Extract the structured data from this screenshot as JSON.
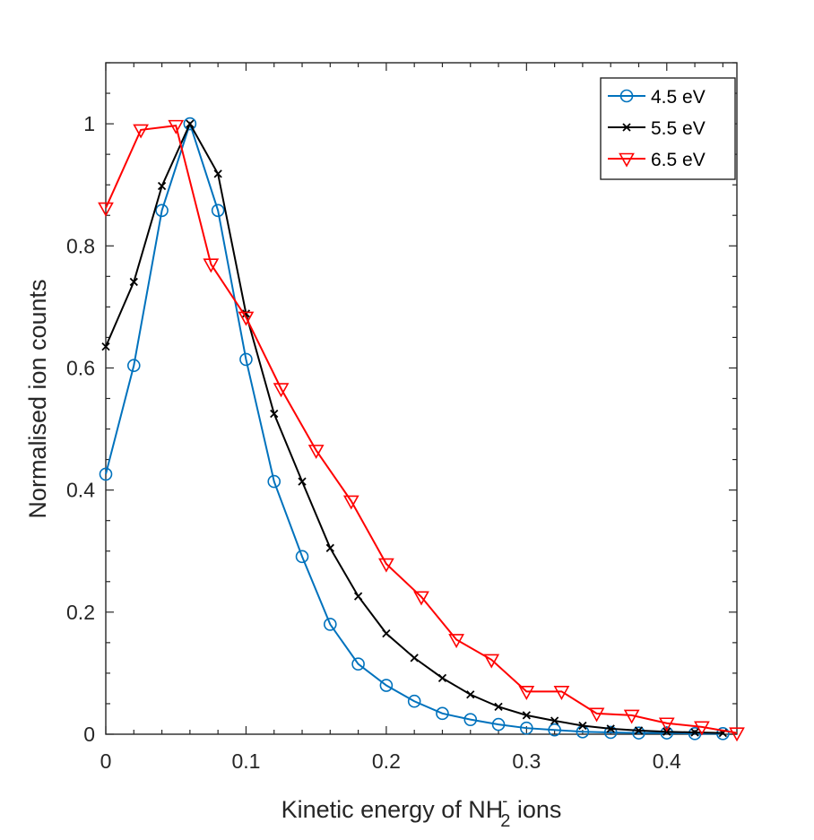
{
  "chart_data": {
    "type": "line",
    "title": "",
    "xlabel": "Kinetic energy of NH",
    "xlabel_subscript": "2",
    "xlabel_superscript": "-",
    "xlabel_suffix": " ions",
    "ylabel": "Normalised ion counts",
    "xlim": [
      0,
      0.45
    ],
    "ylim": [
      0,
      1.1
    ],
    "xticks": [
      0,
      0.1,
      0.2,
      0.3,
      0.4
    ],
    "xtick_labels": [
      "0",
      "0.1",
      "0.2",
      "0.3",
      "0.4"
    ],
    "yticks": [
      0,
      0.2,
      0.4,
      0.6,
      0.8,
      1
    ],
    "ytick_labels": [
      "0",
      "0.2",
      "0.4",
      "0.6",
      "0.8",
      "1"
    ],
    "grid": false,
    "legend_position": "top-right",
    "series": [
      {
        "name": "4.5 eV",
        "color": "#0072bd",
        "marker": "circle",
        "x": [
          0,
          0.02,
          0.04,
          0.06,
          0.08,
          0.1,
          0.12,
          0.14,
          0.16,
          0.18,
          0.2,
          0.22,
          0.24,
          0.26,
          0.28,
          0.3,
          0.32,
          0.34,
          0.36,
          0.38,
          0.4,
          0.42,
          0.44
        ],
        "values": [
          0.426,
          0.604,
          0.858,
          1.0,
          0.858,
          0.614,
          0.414,
          0.291,
          0.18,
          0.115,
          0.08,
          0.054,
          0.034,
          0.024,
          0.016,
          0.01,
          0.007,
          0.004,
          0.003,
          0.002,
          0.002,
          0.001,
          0.001
        ]
      },
      {
        "name": "5.5 eV",
        "color": "#000000",
        "marker": "x",
        "x": [
          0,
          0.02,
          0.04,
          0.06,
          0.08,
          0.1,
          0.12,
          0.14,
          0.16,
          0.18,
          0.2,
          0.22,
          0.24,
          0.26,
          0.28,
          0.3,
          0.32,
          0.34,
          0.36,
          0.38,
          0.4,
          0.42,
          0.44
        ],
        "values": [
          0.635,
          0.741,
          0.898,
          1.0,
          0.918,
          0.689,
          0.525,
          0.414,
          0.305,
          0.226,
          0.165,
          0.125,
          0.092,
          0.065,
          0.045,
          0.031,
          0.022,
          0.014,
          0.009,
          0.006,
          0.004,
          0.003,
          0.002
        ]
      },
      {
        "name": "6.5 eV",
        "color": "#ff0000",
        "marker": "triangle-down",
        "x": [
          0,
          0.025,
          0.05,
          0.075,
          0.1,
          0.125,
          0.15,
          0.175,
          0.2,
          0.225,
          0.25,
          0.275,
          0.3,
          0.325,
          0.35,
          0.375,
          0.4,
          0.425,
          0.45
        ],
        "values": [
          0.862,
          0.99,
          0.997,
          0.77,
          0.683,
          0.566,
          0.465,
          0.382,
          0.279,
          0.225,
          0.155,
          0.122,
          0.07,
          0.07,
          0.034,
          0.031,
          0.018,
          0.012,
          0.002
        ]
      }
    ]
  }
}
